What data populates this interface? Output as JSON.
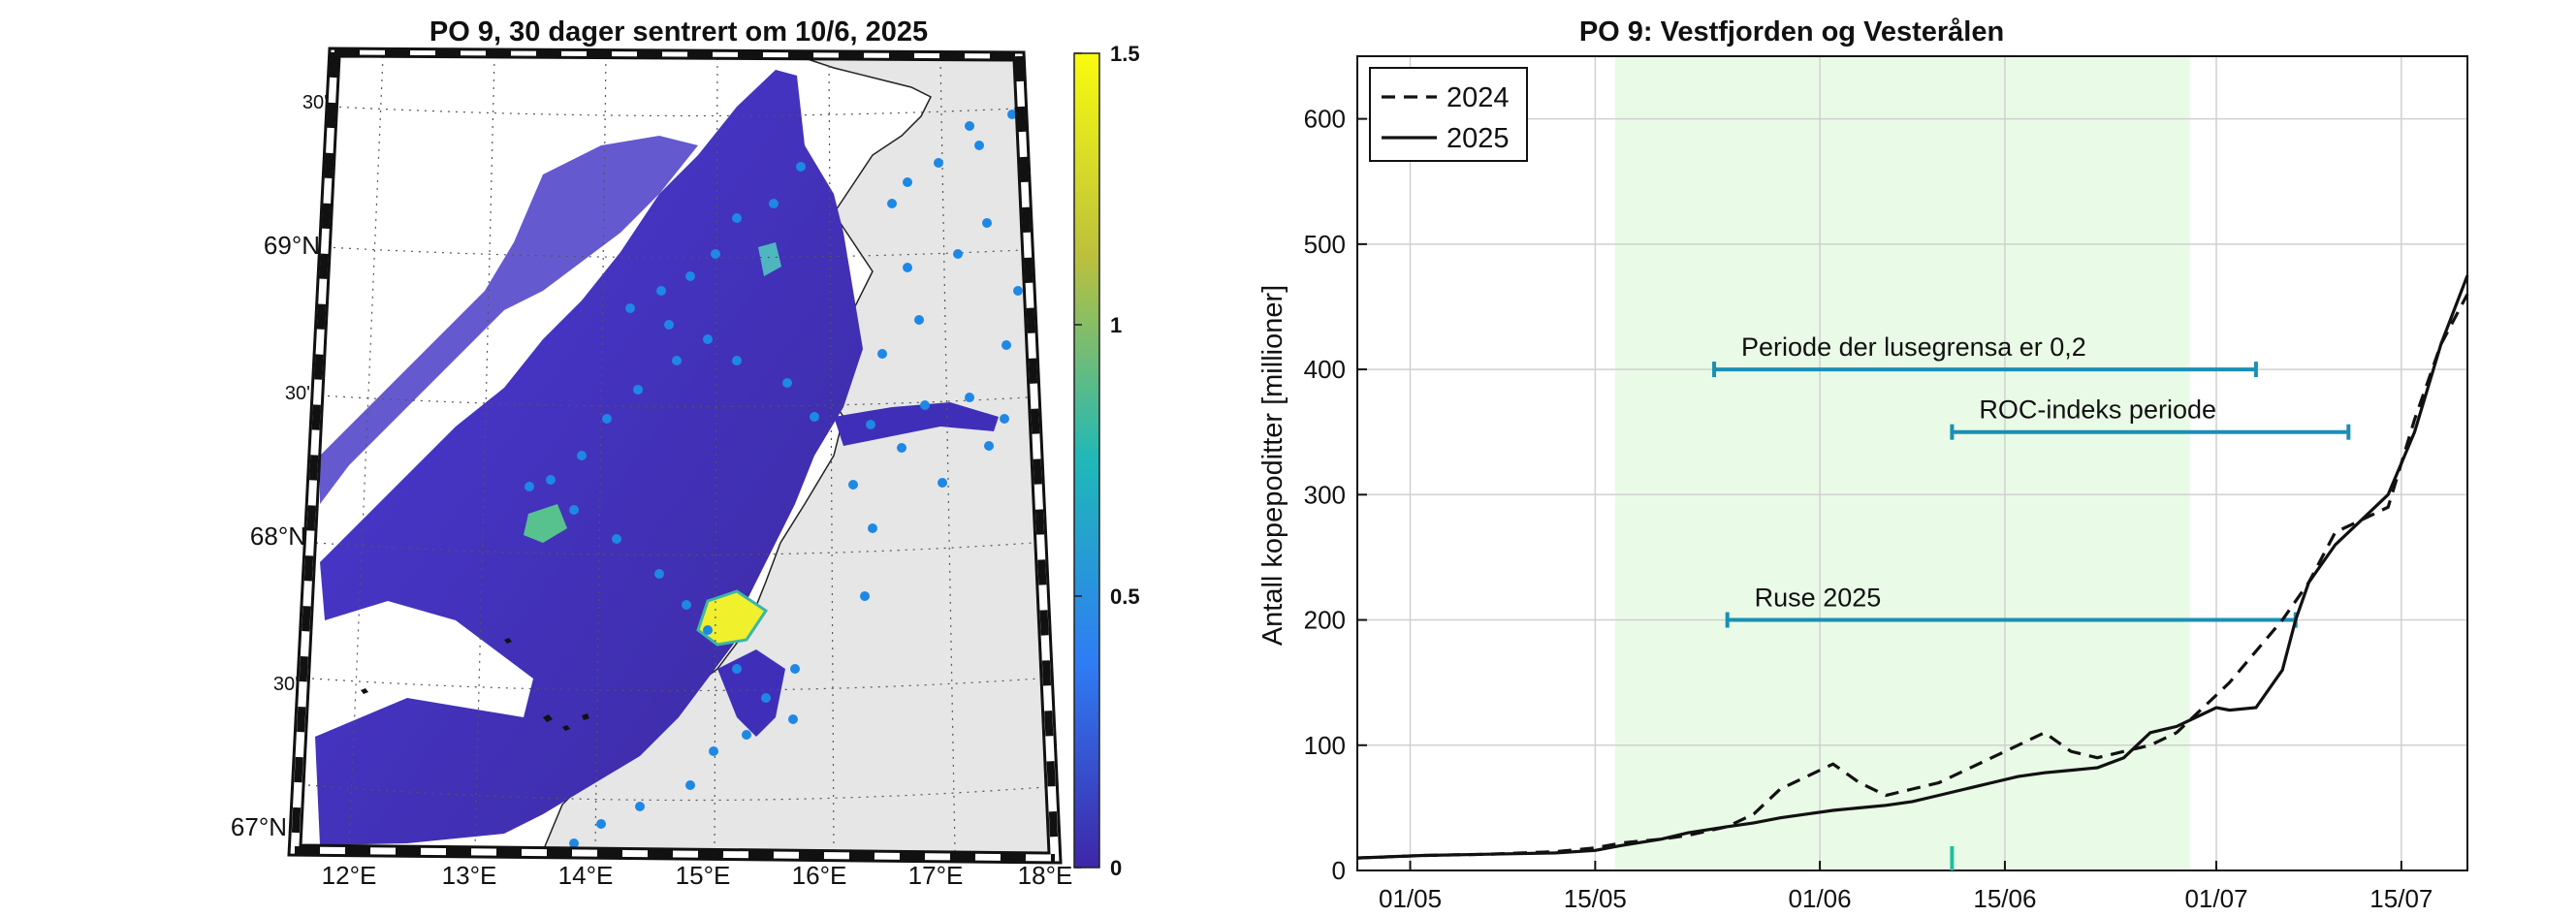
{
  "chart_data": [
    {
      "type": "heatmap",
      "title": "PO 9, 30 dager sentrert om 10/6, 2025",
      "lon_ticks": [
        "12°E",
        "13°E",
        "14°E",
        "15°E",
        "16°E",
        "17°E",
        "18°E"
      ],
      "lat_ticks_major": [
        "67°N",
        "68°N",
        "69°N"
      ],
      "lat_ticks_minor": [
        "30'",
        "30'",
        "30'"
      ],
      "colorbar": {
        "ticks": [
          "0",
          "0.5",
          "1",
          "1.5"
        ],
        "range": [
          0,
          1.5
        ],
        "colors": [
          "#3e26a8",
          "#2f7cf5",
          "#1fb8b8",
          "#bbc03c",
          "#f9fb0e"
        ]
      },
      "background_color": "#ffffff",
      "land_color": "#e6e6e6",
      "station_color": "#1e88e5"
    },
    {
      "type": "line",
      "title": "PO 9: Vestfjorden og Vesterålen",
      "ylabel": "Antall kopepoditter [millioner]",
      "xlabel": "",
      "x_tick_labels": [
        "01/05",
        "15/05",
        "01/06",
        "15/06",
        "01/07",
        "15/07"
      ],
      "x_tick_days": [
        4,
        18,
        35,
        49,
        65,
        79
      ],
      "xlim": [
        0,
        84
      ],
      "ylim": [
        0,
        650
      ],
      "y_ticks": [
        0,
        100,
        200,
        300,
        400,
        500,
        600
      ],
      "grid": true,
      "legend_position": "top-left",
      "shaded_period": {
        "start": 19.5,
        "end": 63,
        "color": "#e9fbe6"
      },
      "intervals": [
        {
          "label": "Periode der lusegrensa er 0,2",
          "start": 27,
          "end": 68,
          "y": 400
        },
        {
          "label": "ROC-indeks periode",
          "start": 45,
          "end": 75,
          "y": 350
        },
        {
          "label": "Ruse 2025",
          "start": 28,
          "end": 71,
          "y": 200
        }
      ],
      "center_marker": {
        "day": 45,
        "color": "#1fbfa0"
      },
      "interval_color": "#1a8fb5",
      "series": [
        {
          "name": "2024",
          "style": "dashed",
          "x": [
            0,
            5,
            10,
            15,
            18,
            20,
            23,
            25,
            28,
            30,
            32,
            34,
            36,
            38,
            40,
            42,
            44,
            46,
            48,
            50,
            52,
            54,
            56,
            58,
            60,
            62,
            64,
            65,
            66,
            68,
            70,
            72,
            74,
            76,
            78,
            80,
            82,
            84
          ],
          "y": [
            10,
            12,
            13,
            15,
            18,
            22,
            25,
            28,
            35,
            45,
            65,
            75,
            85,
            70,
            60,
            65,
            70,
            80,
            90,
            100,
            110,
            95,
            90,
            95,
            100,
            110,
            130,
            140,
            150,
            175,
            200,
            230,
            270,
            280,
            290,
            360,
            420,
            460
          ]
        },
        {
          "name": "2025",
          "style": "solid",
          "x": [
            0,
            5,
            10,
            15,
            18,
            20,
            23,
            25,
            28,
            30,
            32,
            34,
            36,
            38,
            40,
            42,
            44,
            46,
            48,
            50,
            52,
            54,
            56,
            58,
            60,
            62,
            64,
            65,
            66,
            68,
            70,
            71,
            72,
            74,
            76,
            78,
            80,
            82,
            84
          ],
          "y": [
            10,
            12,
            13,
            14,
            16,
            20,
            25,
            30,
            35,
            38,
            42,
            45,
            48,
            50,
            52,
            55,
            60,
            65,
            70,
            75,
            78,
            80,
            82,
            90,
            110,
            115,
            125,
            130,
            128,
            130,
            160,
            200,
            230,
            260,
            280,
            300,
            350,
            420,
            475
          ]
        }
      ]
    }
  ]
}
